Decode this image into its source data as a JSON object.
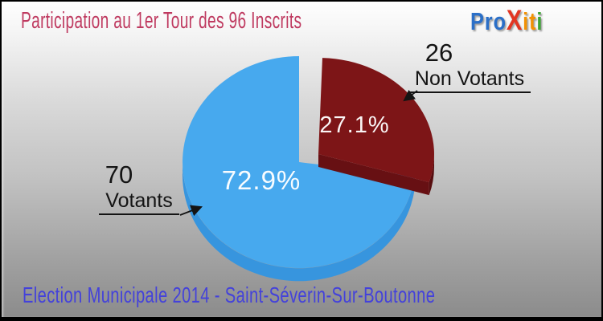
{
  "header": {
    "title": "Participation au 1er Tour des 96 Inscrits",
    "title_color": "#bf3a60"
  },
  "logo": {
    "name": "Proxiti",
    "letters": [
      {
        "ch": "P",
        "color": "#2b6fc7"
      },
      {
        "ch": "r",
        "color": "#2b6fc7"
      },
      {
        "ch": "o",
        "color": "#2b6fc7"
      },
      {
        "ch": "X",
        "color": "#e23522"
      },
      {
        "ch": "i",
        "color": "#f29204"
      },
      {
        "ch": "t",
        "color": "#f29204"
      },
      {
        "ch": "i",
        "color": "#3fa535"
      }
    ]
  },
  "footer": {
    "text": "Election Municipale 2014 - Saint-Séverin-Sur-Boutonne",
    "color": "#4442da"
  },
  "chart_data": {
    "type": "pie",
    "style": "3d-exploded",
    "title": "Participation au 1er Tour des 96 Inscrits",
    "total": 96,
    "total_label": "96 Inscrits",
    "start_angle_deg": 0,
    "direction": "clockwise-from-top",
    "slices": [
      {
        "label": "Non Votants",
        "value": 26,
        "count_label": "26",
        "pct": 27.1,
        "pct_label": "27.1%",
        "color": "#7d1517",
        "side_color": "#671013",
        "rim_color": "#570d0f",
        "exploded": true
      },
      {
        "label": "Votants",
        "value": 70,
        "count_label": "70",
        "pct": 72.9,
        "pct_label": "72.9%",
        "color": "#47a9ee",
        "side_color": "#3795de",
        "exploded": false
      }
    ]
  }
}
